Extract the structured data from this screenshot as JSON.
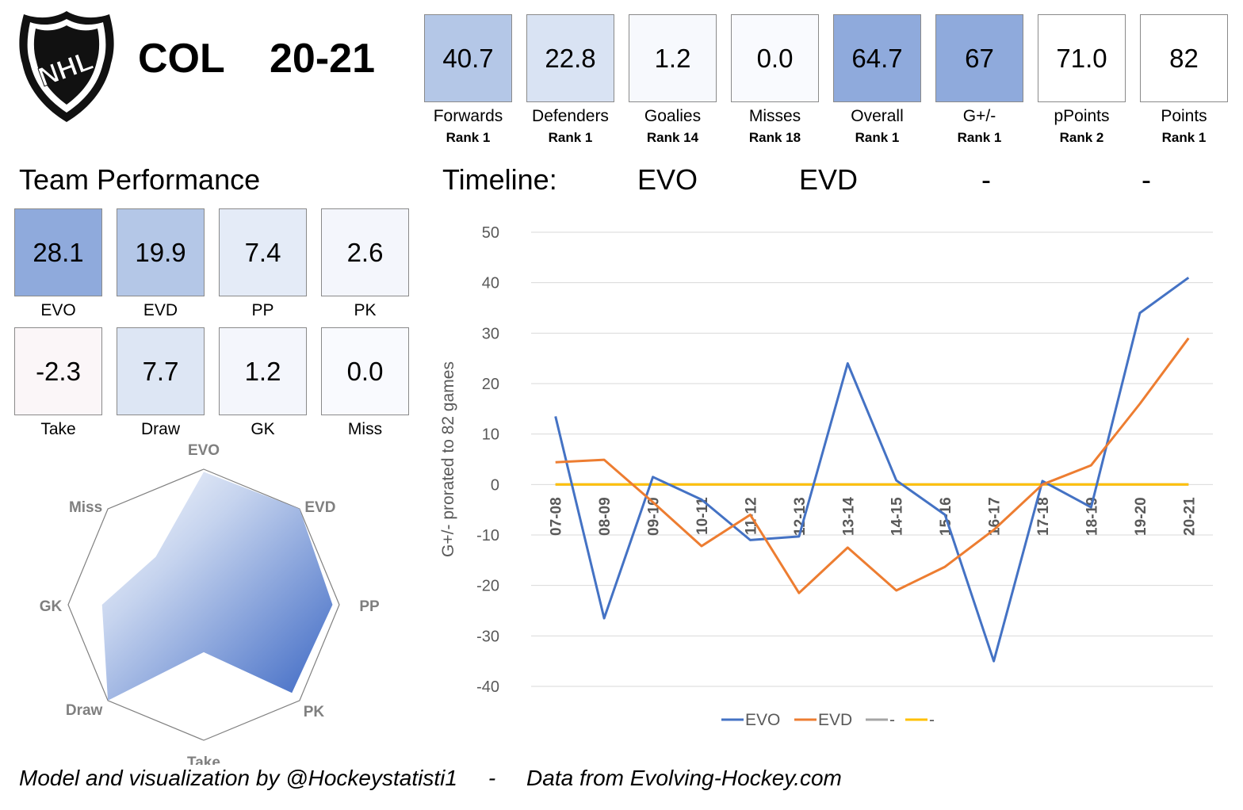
{
  "header": {
    "logo_text": "NHL",
    "team": "COL",
    "season": "20-21",
    "stats": [
      {
        "value": "40.7",
        "label": "Forwards",
        "rank": "Rank 1",
        "color": "#b4c7e7"
      },
      {
        "value": "22.8",
        "label": "Defenders",
        "rank": "Rank 1",
        "color": "#d9e3f3"
      },
      {
        "value": "1.2",
        "label": "Goalies",
        "rank": "Rank 14",
        "color": "#f7f9fd"
      },
      {
        "value": "0.0",
        "label": "Misses",
        "rank": "Rank 18",
        "color": "#f9fafe"
      },
      {
        "value": "64.7",
        "label": "Overall",
        "rank": "Rank 1",
        "color": "#8faadc"
      },
      {
        "value": "67",
        "label": "G+/-",
        "rank": "Rank 1",
        "color": "#8faadc"
      },
      {
        "value": "71.0",
        "label": "pPoints",
        "rank": "Rank 2",
        "color": "#ffffff"
      },
      {
        "value": "82",
        "label": "Points",
        "rank": "Rank 1",
        "color": "#ffffff"
      }
    ]
  },
  "team_performance": {
    "title": "Team Performance",
    "boxes": [
      {
        "value": "28.1",
        "label": "EVO",
        "color": "#8faadc"
      },
      {
        "value": "19.9",
        "label": "EVD",
        "color": "#b4c7e7"
      },
      {
        "value": "7.4",
        "label": "PP",
        "color": "#e4ebf7"
      },
      {
        "value": "2.6",
        "label": "PK",
        "color": "#f4f6fc"
      },
      {
        "value": "-2.3",
        "label": "Take",
        "color": "#fbf6f8"
      },
      {
        "value": "7.7",
        "label": "Draw",
        "color": "#dde6f4"
      },
      {
        "value": "1.2",
        "label": "GK",
        "color": "#f4f6fc"
      },
      {
        "value": "0.0",
        "label": "Miss",
        "color": "#f9fafe"
      }
    ]
  },
  "timeline": {
    "label": "Timeline:",
    "series_names": [
      "EVO",
      "EVD",
      "-",
      "-"
    ]
  },
  "chart_data": [
    {
      "type": "radar",
      "axes": [
        "EVO",
        "EVD",
        "PP",
        "PK",
        "Take",
        "Draw",
        "GK",
        "Miss"
      ],
      "values": [
        0.98,
        1.0,
        0.95,
        0.92,
        0.35,
        1.0,
        0.75,
        0.5
      ],
      "range": [
        0,
        1
      ]
    },
    {
      "type": "line",
      "x": [
        "07-08",
        "08-09",
        "09-10",
        "10-11",
        "11-12",
        "12-13",
        "13-14",
        "14-15",
        "15-16",
        "16-17",
        "17-18",
        "18-19",
        "19-20",
        "20-21"
      ],
      "series": [
        {
          "name": "EVO",
          "color": "#4472c4",
          "values": [
            13.5,
            -26.5,
            1.5,
            -3,
            -11,
            -10.3,
            24,
            0.8,
            -6,
            -35,
            0.7,
            -4.5,
            34,
            41
          ]
        },
        {
          "name": "EVD",
          "color": "#ed7d31",
          "values": [
            4.4,
            4.9,
            -3.5,
            -12.2,
            -6,
            -21.5,
            -12.5,
            -21,
            -16.3,
            -9,
            0,
            3.8,
            16,
            29
          ]
        },
        {
          "name": "-",
          "color": "#a5a5a5",
          "values": [
            0,
            0,
            0,
            0,
            0,
            0,
            0,
            0,
            0,
            0,
            0,
            0,
            0,
            0
          ]
        },
        {
          "name": "-",
          "color": "#ffc000",
          "values": [
            0,
            0,
            0,
            0,
            0,
            0,
            0,
            0,
            0,
            0,
            0,
            0,
            0,
            0
          ]
        }
      ],
      "ylabel": "G+/- prorated to 82 games",
      "ylim": [
        -40,
        50
      ],
      "yticks": [
        50,
        40,
        30,
        20,
        10,
        0,
        -10,
        -20,
        -30,
        -40
      ],
      "grid": true,
      "legend": "bottom"
    }
  ],
  "footer": {
    "credit": "Model and visualization by @Hockeystatisti1",
    "separator": "-",
    "source": "Data from Evolving-Hockey.com"
  }
}
